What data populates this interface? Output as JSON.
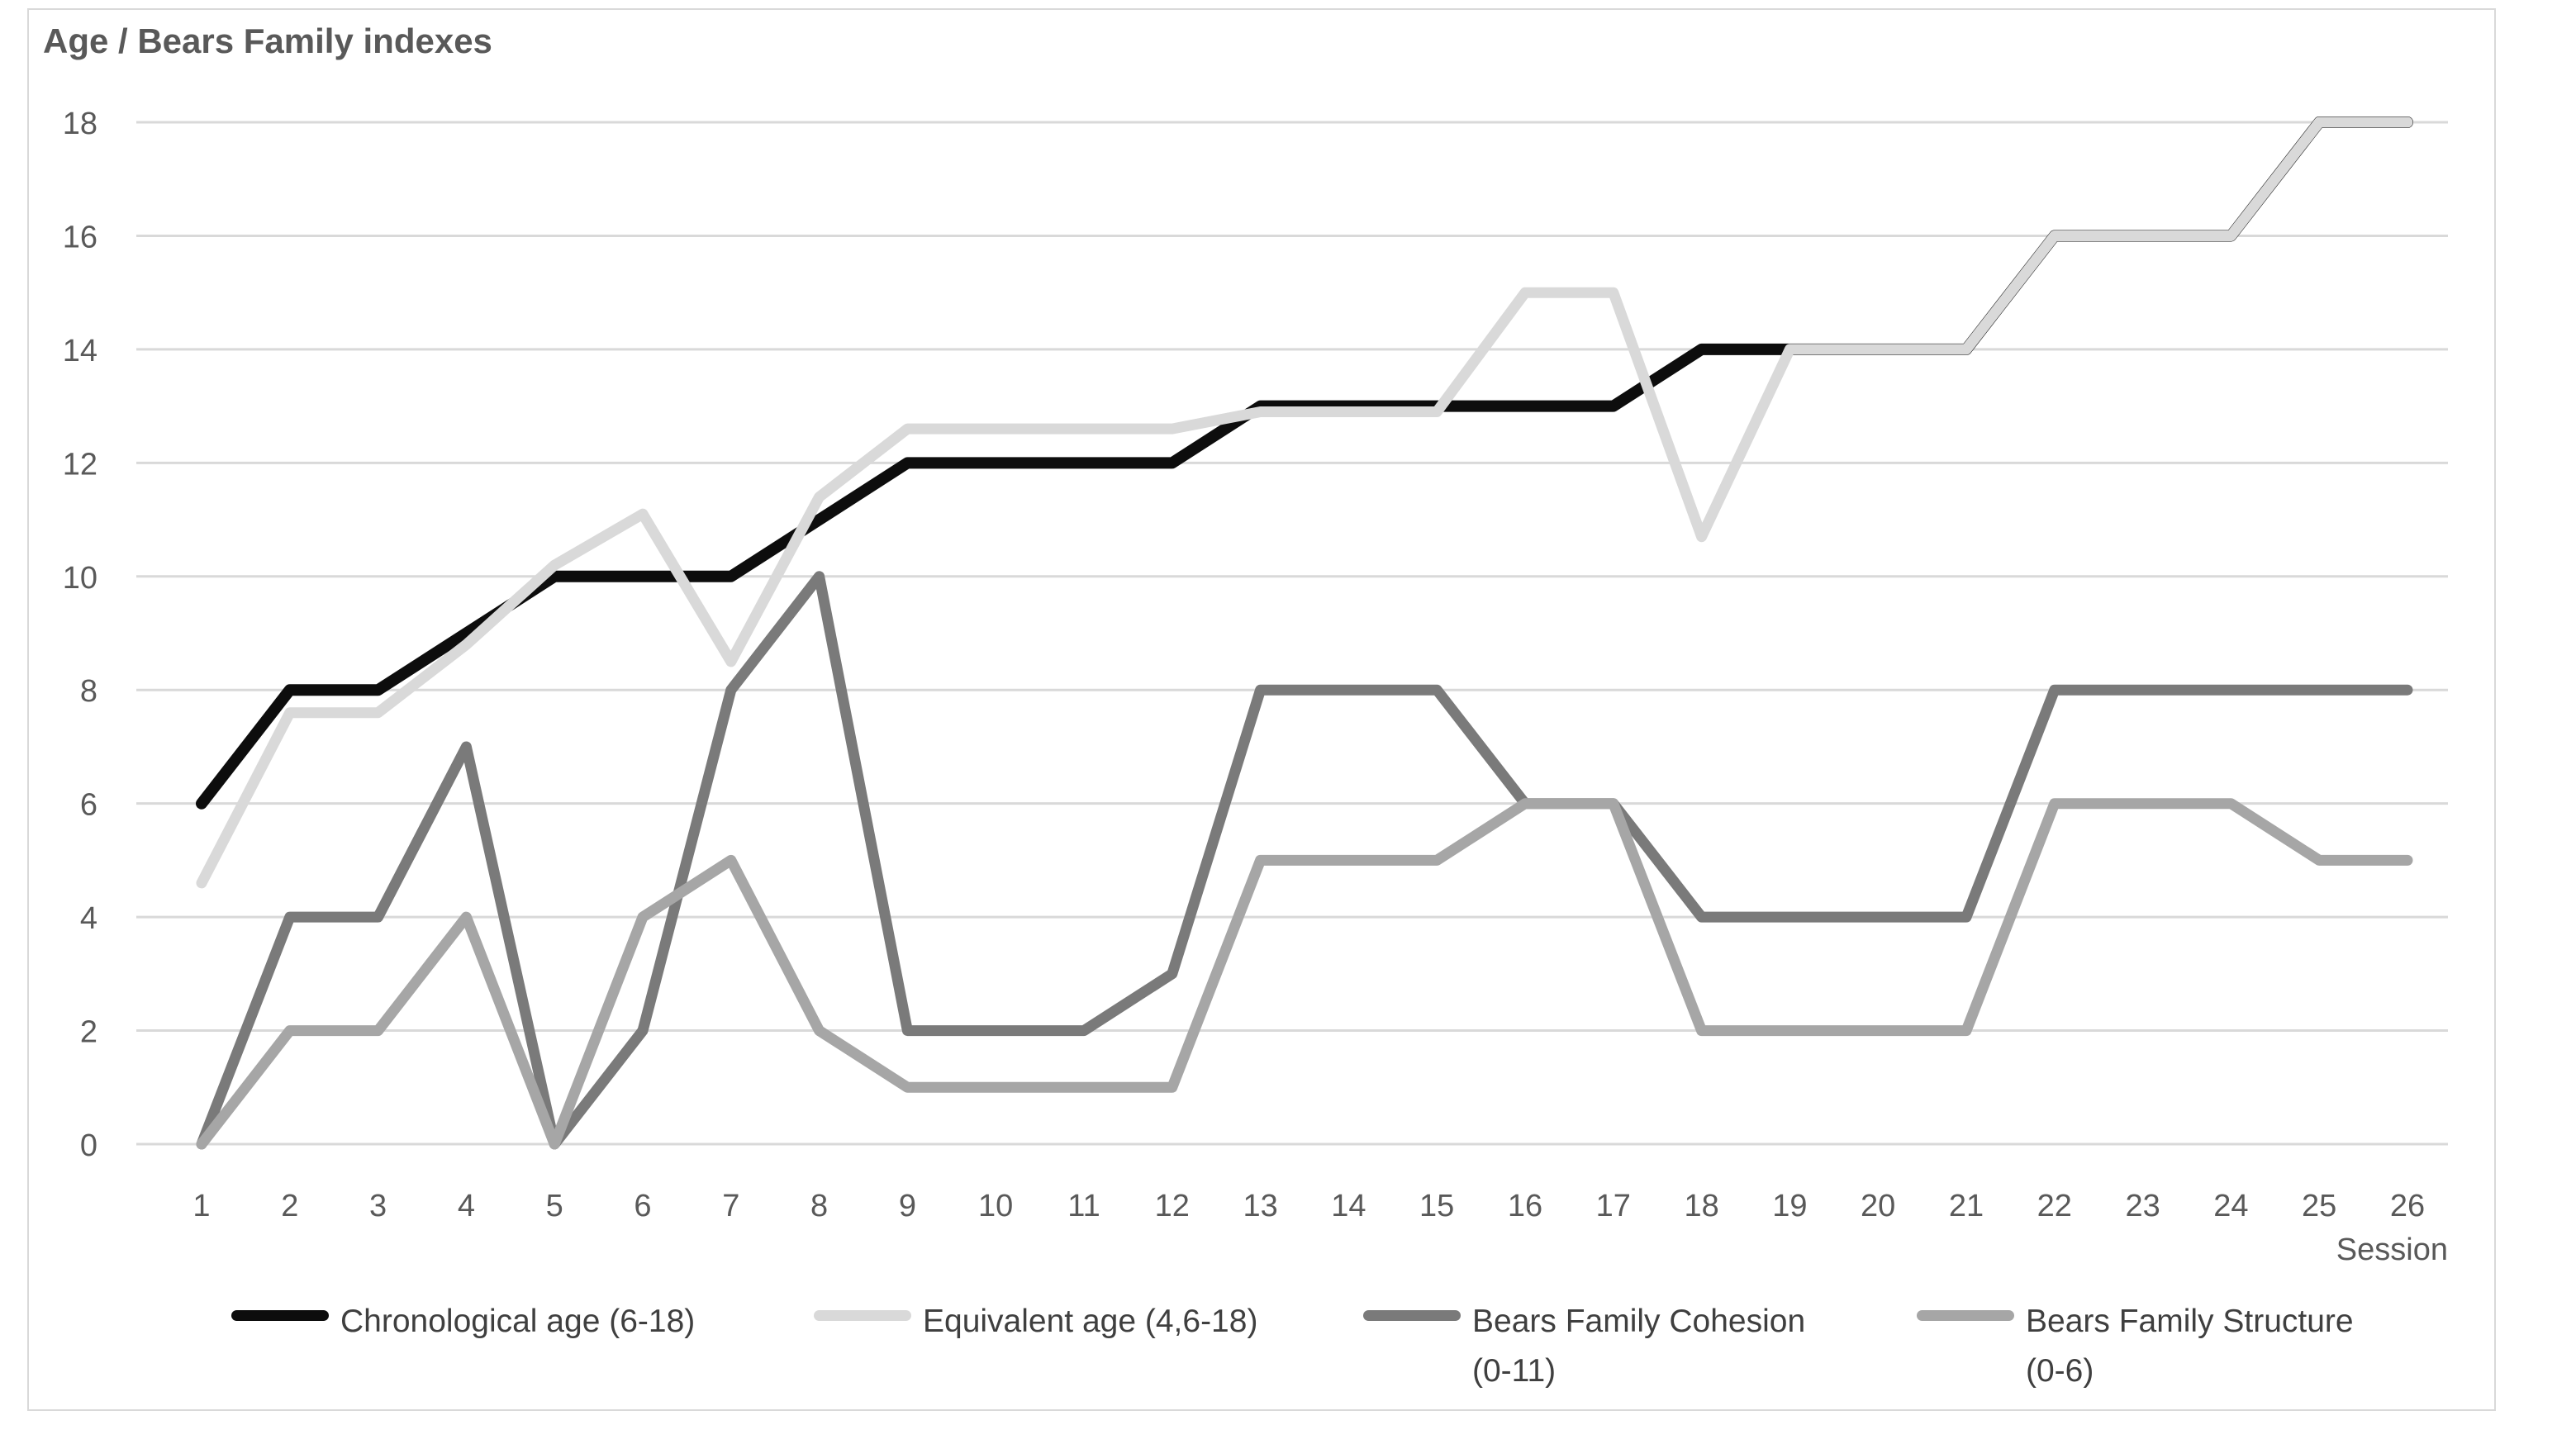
{
  "chart_data": {
    "type": "line",
    "title": "Age / Bears Family indexes",
    "xlabel": "Session",
    "ylabel": "",
    "grid": true,
    "legend_position": "bottom",
    "background_color": "#ffffff",
    "gridline_color": "#d9d9d9",
    "axis_label_color": "#595959",
    "legend_text_color": "#3f3f3f",
    "y_axis": {
      "min": 0,
      "max": 18,
      "step": 2,
      "tick_labels": [
        "0",
        "2",
        "4",
        "6",
        "8",
        "10",
        "12",
        "14",
        "16",
        "18"
      ]
    },
    "categories": [
      "1",
      "2",
      "3",
      "4",
      "5",
      "6",
      "7",
      "8",
      "9",
      "10",
      "11",
      "12",
      "13",
      "14",
      "15",
      "16",
      "17",
      "18",
      "19",
      "20",
      "21",
      "22",
      "23",
      "24",
      "25",
      "26"
    ],
    "series": [
      {
        "name": "Chronological age (6-18)",
        "legend_line1": "Chronological age (6-18)",
        "legend_line2": "",
        "color": "#0d0d0d",
        "stroke_width": 14,
        "values": [
          6,
          8,
          8,
          9,
          10,
          10,
          10,
          11,
          12,
          12,
          12,
          12,
          13,
          13,
          13,
          13,
          13,
          14,
          14,
          14,
          14,
          16,
          16,
          16,
          18,
          18
        ]
      },
      {
        "name": "Equivalent age (4,6-18)",
        "legend_line1": "Equivalent age (4,6-18)",
        "legend_line2": "",
        "color": "#d9d9d9",
        "stroke_width": 13,
        "values": [
          4.6,
          7.6,
          7.6,
          8.8,
          10.2,
          11.1,
          8.5,
          11.4,
          12.6,
          12.6,
          12.6,
          12.6,
          12.9,
          12.9,
          12.9,
          15,
          15,
          10.7,
          14,
          14,
          14,
          16,
          16,
          16,
          18,
          18
        ]
      },
      {
        "name": "Bears Family Cohesion (0-11)",
        "legend_line1": "Bears Family Cohesion",
        "legend_line2": "(0-11)",
        "color": "#7a7a7a",
        "stroke_width": 13,
        "values": [
          0,
          4,
          4,
          7,
          0,
          2,
          8,
          10,
          2,
          2,
          2,
          3,
          8,
          8,
          8,
          6,
          6,
          4,
          4,
          4,
          4,
          8,
          8,
          8,
          8,
          8
        ]
      },
      {
        "name": "Bears Family Structure (0-6)",
        "legend_line1": "Bears Family Structure",
        "legend_line2": "(0-6)",
        "color": "#a6a6a6",
        "stroke_width": 13,
        "values": [
          0,
          2,
          2,
          4,
          0,
          4,
          5,
          2,
          1,
          1,
          1,
          1,
          5,
          5,
          5,
          6,
          6,
          2,
          2,
          2,
          2,
          6,
          6,
          6,
          5,
          5
        ]
      }
    ]
  }
}
